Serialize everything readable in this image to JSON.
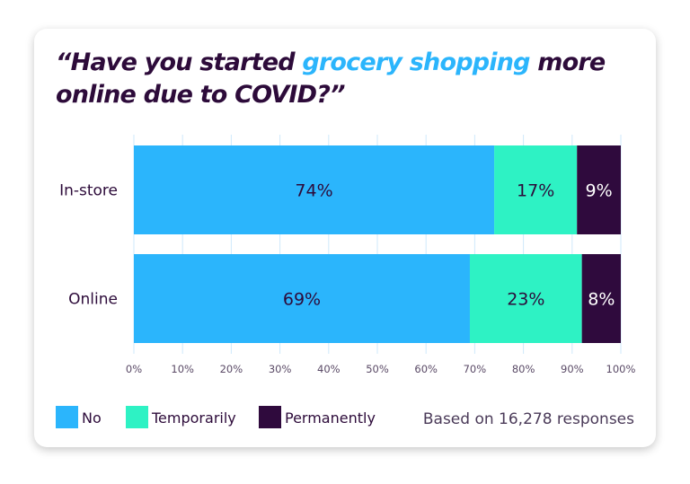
{
  "chart_data": {
    "type": "bar",
    "orientation": "horizontal",
    "stacked": true,
    "title_parts": [
      "“Have you started ",
      "grocery shopping",
      " more online due to COVID?”"
    ],
    "categories": [
      "In-store",
      "Online"
    ],
    "series": [
      {
        "name": "No",
        "values": [
          74,
          69
        ],
        "color": "#2bb5fc"
      },
      {
        "name": "Temporarily",
        "values": [
          17,
          23
        ],
        "color": "#2ef2c4"
      },
      {
        "name": "Permanently",
        "values": [
          9,
          8
        ],
        "color": "#2f0a3d"
      }
    ],
    "data_labels": [
      [
        "74%",
        "17%",
        "9%"
      ],
      [
        "69%",
        "23%",
        "8%"
      ]
    ],
    "xlim": [
      0,
      100
    ],
    "x_ticks": [
      "0%",
      "10%",
      "20%",
      "30%",
      "40%",
      "50%",
      "60%",
      "70%",
      "80%",
      "90%",
      "100%"
    ],
    "grid": "vertical",
    "legend_placement": "bottom-left",
    "note": "Based on 16,278 responses",
    "accent_color": "#2bb5fc",
    "text_color": "#2d0b3a"
  }
}
